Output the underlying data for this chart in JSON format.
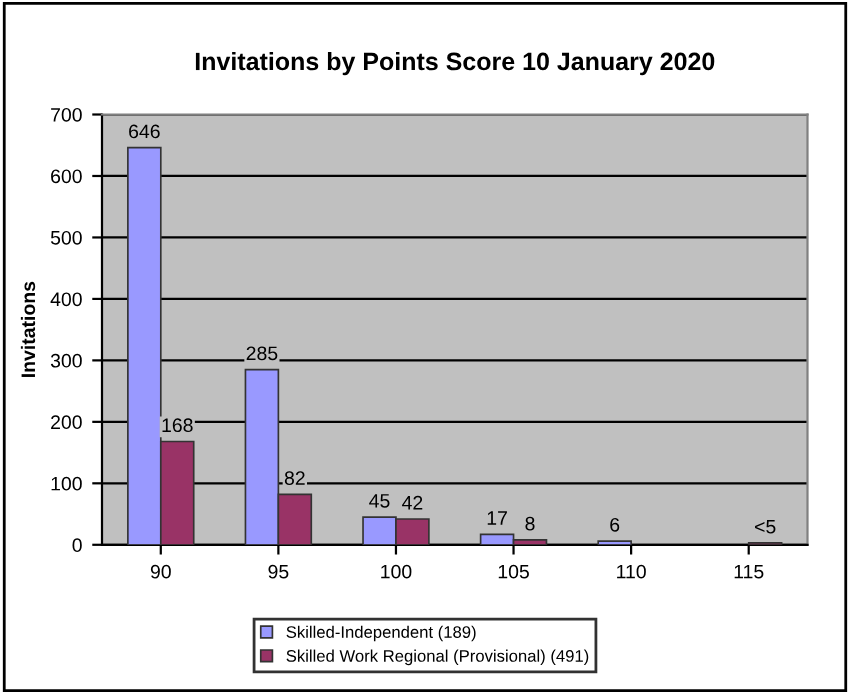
{
  "chart_data": {
    "type": "bar",
    "title": "Invitations by Points Score 10 January 2020",
    "ylabel": "Invitations",
    "categories": [
      "90",
      "95",
      "100",
      "105",
      "110",
      "115"
    ],
    "series": [
      {
        "name": "Skilled-Independent (189)",
        "color": "#9999ff",
        "values": [
          646,
          285,
          45,
          17,
          6,
          null
        ],
        "value_labels": [
          "646",
          "285",
          "45",
          "17",
          "6",
          null
        ]
      },
      {
        "name": "Skilled Work Regional (Provisional) (491)",
        "color": "#993366",
        "values": [
          168,
          82,
          42,
          8,
          null,
          3
        ],
        "value_labels": [
          "168",
          "82",
          "42",
          "8",
          null,
          "<5"
        ]
      }
    ],
    "ylim": [
      0,
      700
    ],
    "yticks": [
      0,
      100,
      200,
      300,
      400,
      500,
      600,
      700
    ],
    "grid": "y",
    "legend": "bottom"
  }
}
